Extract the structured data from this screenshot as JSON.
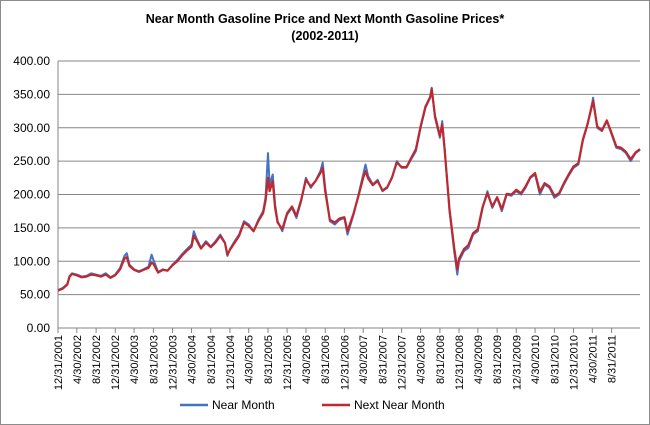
{
  "chart_data": {
    "type": "line",
    "title": "Near Month Gasoline Price and Next Month Gasoline Prices*",
    "subtitle": "(2002-2011)",
    "xlabel": "",
    "ylabel": "",
    "ylim": [
      0,
      400
    ],
    "yticks": [
      "0.00",
      "50.00",
      "100.00",
      "150.00",
      "200.00",
      "250.00",
      "300.00",
      "350.00",
      "400.00"
    ],
    "xticks": [
      "12/31/2001",
      "4/30/2002",
      "8/31/2002",
      "12/31/2002",
      "4/30/2003",
      "8/31/2003",
      "12/31/2003",
      "4/30/2004",
      "8/31/2004",
      "12/31/2004",
      "4/30/2005",
      "8/31/2005",
      "12/31/2005",
      "4/30/2006",
      "8/31/2006",
      "12/31/2006",
      "4/30/2007",
      "8/31/2007",
      "12/31/2007",
      "4/30/2008",
      "8/31/2008",
      "12/31/2008",
      "4/30/2009",
      "8/31/2009",
      "12/31/2009",
      "4/30/2010",
      "8/31/2010",
      "12/31/2010",
      "4/30/2011",
      "8/31/2011"
    ],
    "x_range": [
      "12/31/2001",
      "2/28/2012"
    ],
    "grid": true,
    "legend_position": "bottom",
    "series": [
      {
        "name": "Near Month",
        "color": "#4472c4",
        "points": [
          [
            "12/31/2001",
            57
          ],
          [
            "1/31/2002",
            60
          ],
          [
            "2/28/2002",
            66
          ],
          [
            "3/15/2002",
            78
          ],
          [
            "3/31/2002",
            82
          ],
          [
            "4/30/2002",
            80
          ],
          [
            "5/31/2002",
            77
          ],
          [
            "6/30/2002",
            78
          ],
          [
            "7/31/2002",
            82
          ],
          [
            "8/31/2002",
            80
          ],
          [
            "9/30/2002",
            78
          ],
          [
            "10/31/2002",
            82
          ],
          [
            "11/30/2002",
            76
          ],
          [
            "12/31/2002",
            80
          ],
          [
            "1/31/2003",
            90
          ],
          [
            "2/28/2003",
            108
          ],
          [
            "3/15/2003",
            112
          ],
          [
            "3/31/2003",
            95
          ],
          [
            "4/30/2003",
            88
          ],
          [
            "5/31/2003",
            85
          ],
          [
            "6/30/2003",
            88
          ],
          [
            "7/31/2003",
            92
          ],
          [
            "8/20/2003",
            110
          ],
          [
            "8/31/2003",
            102
          ],
          [
            "9/30/2003",
            84
          ],
          [
            "10/31/2003",
            88
          ],
          [
            "11/30/2003",
            86
          ],
          [
            "12/31/2003",
            95
          ],
          [
            "1/31/2004",
            102
          ],
          [
            "2/28/2004",
            110
          ],
          [
            "3/31/2004",
            118
          ],
          [
            "4/30/2004",
            125
          ],
          [
            "5/15/2004",
            145
          ],
          [
            "5/31/2004",
            135
          ],
          [
            "6/30/2004",
            120
          ],
          [
            "7/31/2004",
            130
          ],
          [
            "8/31/2004",
            122
          ],
          [
            "9/30/2004",
            130
          ],
          [
            "10/31/2004",
            140
          ],
          [
            "11/30/2004",
            128
          ],
          [
            "12/15/2004",
            108
          ],
          [
            "12/31/2004",
            118
          ],
          [
            "1/31/2005",
            130
          ],
          [
            "2/28/2005",
            140
          ],
          [
            "3/31/2005",
            160
          ],
          [
            "4/30/2005",
            155
          ],
          [
            "5/31/2005",
            145
          ],
          [
            "6/30/2005",
            162
          ],
          [
            "7/31/2005",
            175
          ],
          [
            "8/15/2005",
            195
          ],
          [
            "8/31/2005",
            262
          ],
          [
            "9/10/2005",
            215
          ],
          [
            "9/30/2005",
            230
          ],
          [
            "10/15/2005",
            185
          ],
          [
            "10/31/2005",
            160
          ],
          [
            "11/30/2005",
            145
          ],
          [
            "12/31/2005",
            170
          ],
          [
            "1/31/2006",
            180
          ],
          [
            "2/28/2006",
            165
          ],
          [
            "3/31/2006",
            190
          ],
          [
            "4/30/2006",
            225
          ],
          [
            "5/31/2006",
            210
          ],
          [
            "6/30/2006",
            220
          ],
          [
            "7/31/2006",
            235
          ],
          [
            "8/15/2006",
            248
          ],
          [
            "8/31/2006",
            210
          ],
          [
            "9/30/2006",
            160
          ],
          [
            "10/31/2006",
            155
          ],
          [
            "11/30/2006",
            162
          ],
          [
            "12/31/2006",
            165
          ],
          [
            "1/20/2007",
            140
          ],
          [
            "2/28/2007",
            170
          ],
          [
            "3/31/2007",
            200
          ],
          [
            "4/30/2007",
            230
          ],
          [
            "5/15/2007",
            245
          ],
          [
            "5/31/2007",
            228
          ],
          [
            "6/30/2007",
            215
          ],
          [
            "7/31/2007",
            222
          ],
          [
            "8/31/2007",
            205
          ],
          [
            "9/30/2007",
            210
          ],
          [
            "10/31/2007",
            225
          ],
          [
            "11/30/2007",
            250
          ],
          [
            "12/31/2007",
            240
          ],
          [
            "1/31/2008",
            240
          ],
          [
            "2/28/2008",
            252
          ],
          [
            "3/31/2008",
            265
          ],
          [
            "4/30/2008",
            300
          ],
          [
            "5/31/2008",
            330
          ],
          [
            "6/30/2008",
            345
          ],
          [
            "7/10/2008",
            360
          ],
          [
            "7/31/2008",
            315
          ],
          [
            "8/31/2008",
            285
          ],
          [
            "9/15/2008",
            310
          ],
          [
            "9/30/2008",
            270
          ],
          [
            "10/31/2008",
            175
          ],
          [
            "11/30/2008",
            115
          ],
          [
            "12/20/2008",
            80
          ],
          [
            "12/31/2008",
            100
          ],
          [
            "1/31/2009",
            115
          ],
          [
            "2/28/2009",
            120
          ],
          [
            "3/31/2009",
            140
          ],
          [
            "4/30/2009",
            145
          ],
          [
            "5/31/2009",
            180
          ],
          [
            "6/30/2009",
            205
          ],
          [
            "7/31/2009",
            180
          ],
          [
            "8/31/2009",
            195
          ],
          [
            "9/30/2009",
            175
          ],
          [
            "10/31/2009",
            200
          ],
          [
            "11/30/2009",
            198
          ],
          [
            "12/31/2009",
            205
          ],
          [
            "1/31/2010",
            200
          ],
          [
            "2/28/2010",
            210
          ],
          [
            "3/31/2010",
            225
          ],
          [
            "4/30/2010",
            230
          ],
          [
            "5/31/2010",
            200
          ],
          [
            "6/30/2010",
            215
          ],
          [
            "7/31/2010",
            210
          ],
          [
            "8/31/2010",
            195
          ],
          [
            "9/30/2010",
            200
          ],
          [
            "10/31/2010",
            215
          ],
          [
            "11/30/2010",
            228
          ],
          [
            "12/31/2010",
            240
          ],
          [
            "1/31/2011",
            245
          ],
          [
            "2/28/2011",
            280
          ],
          [
            "3/31/2011",
            305
          ],
          [
            "4/30/2011",
            338
          ],
          [
            "5/5/2011",
            345
          ],
          [
            "5/31/2011",
            300
          ],
          [
            "6/30/2011",
            295
          ],
          [
            "7/31/2011",
            310
          ],
          [
            "8/31/2011",
            290
          ],
          [
            "9/30/2011",
            270
          ],
          [
            "10/31/2011",
            268
          ],
          [
            "11/30/2011",
            262
          ],
          [
            "12/31/2011",
            250
          ],
          [
            "1/31/2012",
            262
          ],
          [
            "2/28/2012",
            267
          ]
        ]
      },
      {
        "name": "Next Near Month",
        "color": "#c0282d",
        "points": [
          [
            "12/31/2001",
            56
          ],
          [
            "1/31/2002",
            59
          ],
          [
            "2/28/2002",
            65
          ],
          [
            "3/15/2002",
            77
          ],
          [
            "3/31/2002",
            81
          ],
          [
            "4/30/2002",
            79
          ],
          [
            "5/31/2002",
            76
          ],
          [
            "6/30/2002",
            77
          ],
          [
            "7/31/2002",
            80
          ],
          [
            "8/31/2002",
            79
          ],
          [
            "9/30/2002",
            77
          ],
          [
            "10/31/2002",
            80
          ],
          [
            "11/30/2002",
            75
          ],
          [
            "12/31/2002",
            79
          ],
          [
            "1/31/2003",
            88
          ],
          [
            "2/28/2003",
            104
          ],
          [
            "3/15/2003",
            106
          ],
          [
            "3/31/2003",
            93
          ],
          [
            "4/30/2003",
            87
          ],
          [
            "5/31/2003",
            84
          ],
          [
            "6/30/2003",
            87
          ],
          [
            "7/31/2003",
            90
          ],
          [
            "8/20/2003",
            98
          ],
          [
            "8/31/2003",
            96
          ],
          [
            "9/30/2003",
            83
          ],
          [
            "10/31/2003",
            87
          ],
          [
            "11/30/2003",
            86
          ],
          [
            "12/31/2003",
            94
          ],
          [
            "1/31/2004",
            100
          ],
          [
            "2/28/2004",
            108
          ],
          [
            "3/31/2004",
            116
          ],
          [
            "4/30/2004",
            122
          ],
          [
            "5/15/2004",
            138
          ],
          [
            "5/31/2004",
            132
          ],
          [
            "6/30/2004",
            119
          ],
          [
            "7/31/2004",
            128
          ],
          [
            "8/31/2004",
            121
          ],
          [
            "9/30/2004",
            128
          ],
          [
            "10/31/2004",
            138
          ],
          [
            "11/30/2004",
            127
          ],
          [
            "12/15/2004",
            110
          ],
          [
            "12/31/2004",
            117
          ],
          [
            "1/31/2005",
            128
          ],
          [
            "2/28/2005",
            138
          ],
          [
            "3/31/2005",
            158
          ],
          [
            "4/30/2005",
            153
          ],
          [
            "5/31/2005",
            145
          ],
          [
            "6/30/2005",
            160
          ],
          [
            "7/31/2005",
            172
          ],
          [
            "8/15/2005",
            190
          ],
          [
            "8/31/2005",
            225
          ],
          [
            "9/10/2005",
            205
          ],
          [
            "9/30/2005",
            220
          ],
          [
            "10/15/2005",
            180
          ],
          [
            "10/31/2005",
            158
          ],
          [
            "11/30/2005",
            148
          ],
          [
            "12/31/2005",
            172
          ],
          [
            "1/31/2006",
            182
          ],
          [
            "2/28/2006",
            168
          ],
          [
            "3/31/2006",
            192
          ],
          [
            "4/30/2006",
            222
          ],
          [
            "5/31/2006",
            212
          ],
          [
            "6/30/2006",
            220
          ],
          [
            "7/31/2006",
            232
          ],
          [
            "8/15/2006",
            240
          ],
          [
            "8/31/2006",
            205
          ],
          [
            "9/30/2006",
            162
          ],
          [
            "10/31/2006",
            158
          ],
          [
            "11/30/2006",
            164
          ],
          [
            "12/31/2006",
            166
          ],
          [
            "1/20/2007",
            145
          ],
          [
            "2/28/2007",
            172
          ],
          [
            "3/31/2007",
            198
          ],
          [
            "4/30/2007",
            225
          ],
          [
            "5/15/2007",
            235
          ],
          [
            "5/31/2007",
            224
          ],
          [
            "6/30/2007",
            214
          ],
          [
            "7/31/2007",
            220
          ],
          [
            "8/31/2007",
            206
          ],
          [
            "9/30/2007",
            211
          ],
          [
            "10/31/2007",
            226
          ],
          [
            "11/30/2007",
            248
          ],
          [
            "12/31/2007",
            241
          ],
          [
            "1/31/2008",
            241
          ],
          [
            "2/28/2008",
            254
          ],
          [
            "3/31/2008",
            268
          ],
          [
            "4/30/2008",
            302
          ],
          [
            "5/31/2008",
            332
          ],
          [
            "6/30/2008",
            346
          ],
          [
            "7/10/2008",
            358
          ],
          [
            "7/31/2008",
            318
          ],
          [
            "8/31/2008",
            288
          ],
          [
            "9/15/2008",
            305
          ],
          [
            "9/30/2008",
            268
          ],
          [
            "10/31/2008",
            178
          ],
          [
            "11/30/2008",
            120
          ],
          [
            "12/20/2008",
            88
          ],
          [
            "12/31/2008",
            104
          ],
          [
            "1/31/2009",
            118
          ],
          [
            "2/28/2009",
            124
          ],
          [
            "3/31/2009",
            142
          ],
          [
            "4/30/2009",
            148
          ],
          [
            "5/31/2009",
            182
          ],
          [
            "6/30/2009",
            202
          ],
          [
            "7/31/2009",
            182
          ],
          [
            "8/31/2009",
            196
          ],
          [
            "9/30/2009",
            178
          ],
          [
            "10/31/2009",
            201
          ],
          [
            "11/30/2009",
            200
          ],
          [
            "12/31/2009",
            207
          ],
          [
            "1/31/2010",
            202
          ],
          [
            "2/28/2010",
            212
          ],
          [
            "3/31/2010",
            226
          ],
          [
            "4/30/2010",
            232
          ],
          [
            "5/31/2010",
            204
          ],
          [
            "6/30/2010",
            217
          ],
          [
            "7/31/2010",
            212
          ],
          [
            "8/31/2010",
            198
          ],
          [
            "9/30/2010",
            202
          ],
          [
            "10/31/2010",
            217
          ],
          [
            "11/30/2010",
            230
          ],
          [
            "12/31/2010",
            242
          ],
          [
            "1/31/2011",
            247
          ],
          [
            "2/28/2011",
            282
          ],
          [
            "3/31/2011",
            306
          ],
          [
            "4/30/2011",
            335
          ],
          [
            "5/5/2011",
            340
          ],
          [
            "5/31/2011",
            302
          ],
          [
            "6/30/2011",
            296
          ],
          [
            "7/31/2011",
            311
          ],
          [
            "8/31/2011",
            292
          ],
          [
            "9/30/2011",
            272
          ],
          [
            "10/31/2011",
            270
          ],
          [
            "11/30/2011",
            264
          ],
          [
            "12/31/2011",
            253
          ],
          [
            "1/31/2012",
            263
          ],
          [
            "2/28/2012",
            268
          ]
        ]
      }
    ]
  }
}
